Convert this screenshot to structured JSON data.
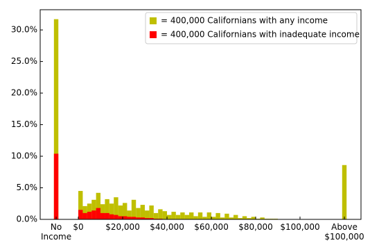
{
  "chart_data": {
    "type": "bar",
    "x": [
      -10000,
      1000,
      3000,
      5000,
      7000,
      9000,
      11000,
      13000,
      15000,
      17000,
      19000,
      21000,
      23000,
      25000,
      27000,
      29000,
      31000,
      33000,
      35000,
      37000,
      39000,
      41000,
      43000,
      45000,
      47000,
      49000,
      51000,
      53000,
      55000,
      57000,
      59000,
      61000,
      63000,
      65000,
      67000,
      69000,
      71000,
      73000,
      75000,
      77000,
      79000,
      81000,
      83000,
      85000,
      87000,
      89000,
      120000
    ],
    "series": [
      {
        "name": "= 400,000 Californians with any income",
        "color": "#bfbf00",
        "values": [
          31.7,
          4.5,
          2.1,
          2.5,
          3.1,
          4.2,
          2.4,
          3.2,
          2.5,
          3.5,
          2.2,
          2.6,
          1.4,
          3.1,
          1.8,
          2.3,
          1.4,
          2.2,
          1.0,
          1.6,
          1.3,
          0.7,
          1.2,
          0.7,
          1.1,
          0.7,
          1.1,
          0.5,
          1.1,
          0.4,
          1.1,
          0.4,
          1.0,
          0.3,
          0.9,
          0.3,
          0.7,
          0.2,
          0.5,
          0.2,
          0.4,
          0.1,
          0.3,
          0.1,
          0.1,
          0.1,
          8.6
        ]
      },
      {
        "name": "= 400,000 Californians with inadequate income",
        "color": "#ff0000",
        "values": [
          10.4,
          1.5,
          1.0,
          1.2,
          1.4,
          1.8,
          1.0,
          1.0,
          0.8,
          0.7,
          0.5,
          0.5,
          0.4,
          0.4,
          0.3,
          0.3,
          0.2,
          0.2,
          0.1,
          0.1,
          0,
          0,
          0,
          0,
          0,
          0,
          0,
          0,
          0,
          0,
          0,
          0,
          0,
          0,
          0,
          0,
          0,
          0,
          0,
          0,
          0,
          0,
          0,
          0,
          0,
          0,
          0
        ]
      }
    ],
    "xlim": [
      -17200,
      127500
    ],
    "xticks": [
      {
        "value": -10000,
        "label": "No Income"
      },
      {
        "value": 0,
        "label": "$0"
      },
      {
        "value": 20000,
        "label": "$20,000"
      },
      {
        "value": 40000,
        "label": "$40,000"
      },
      {
        "value": 60000,
        "label": "$60,000"
      },
      {
        "value": 80000,
        "label": "$80,000"
      },
      {
        "value": 100000,
        "label": "$100,000"
      },
      {
        "value": 120000,
        "label": "Above $100,000"
      }
    ],
    "ylim": [
      0,
      33.2
    ],
    "yticks": [
      {
        "value": 0,
        "label": "0.0%"
      },
      {
        "value": 5,
        "label": "5.0%"
      },
      {
        "value": 10,
        "label": "10.0%"
      },
      {
        "value": 15,
        "label": "15.0%"
      },
      {
        "value": 20,
        "label": "20.0%"
      },
      {
        "value": 25,
        "label": "25.0%"
      },
      {
        "value": 30,
        "label": "30.0%"
      }
    ],
    "legend": "upper right"
  }
}
